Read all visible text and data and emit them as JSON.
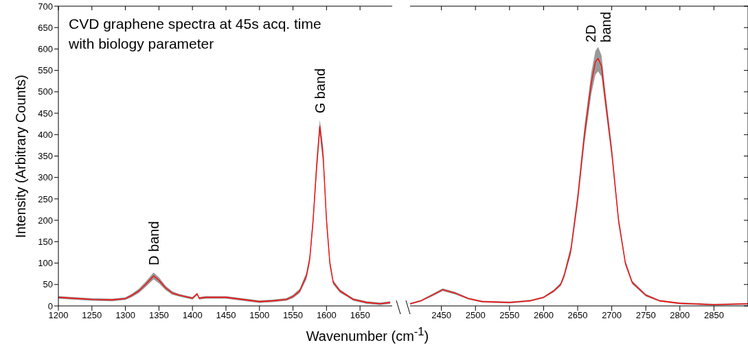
{
  "chart_data": [
    {
      "type": "line",
      "title": "CVD graphene spectra at 45s acq. time\nwith biology parameter",
      "xlabel": "Wavenumber (cm$^{-1}$)",
      "ylabel": "Intensity (Arbitrary Counts)",
      "xlim": [
        1200,
        1698
      ],
      "xticks": [
        1200,
        1250,
        1300,
        1350,
        1400,
        1450,
        1500,
        1550,
        1600,
        1650
      ],
      "ylim": [
        0,
        700
      ],
      "yticks": [
        0,
        50,
        100,
        150,
        200,
        250,
        300,
        350,
        400,
        450,
        500,
        550,
        600,
        650,
        700
      ],
      "grid": false,
      "legend": false,
      "annotations": [
        {
          "text": "D band",
          "x": 1342,
          "y": 85
        },
        {
          "text": "G band",
          "x": 1590,
          "y": 440
        }
      ],
      "series": [
        {
          "color": "#ff0000",
          "x": [
            1200,
            1220,
            1250,
            1280,
            1300,
            1310,
            1320,
            1330,
            1342,
            1350,
            1360,
            1370,
            1380,
            1400,
            1407,
            1410,
            1420,
            1450,
            1480,
            1500,
            1520,
            1540,
            1550,
            1560,
            1570,
            1575,
            1580,
            1585,
            1590,
            1595,
            1600,
            1605,
            1610,
            1620,
            1630,
            1640,
            1660,
            1680,
            1695
          ],
          "values": [
            20,
            18,
            15,
            14,
            17,
            25,
            35,
            50,
            70,
            60,
            42,
            30,
            25,
            18,
            28,
            18,
            20,
            20,
            14,
            10,
            12,
            15,
            22,
            35,
            70,
            110,
            200,
            320,
            420,
            350,
            200,
            100,
            55,
            35,
            25,
            15,
            8,
            5,
            8
          ],
          "lower": [
            17,
            15,
            12,
            11,
            14,
            21,
            30,
            44,
            62,
            53,
            37,
            26,
            22,
            15,
            25,
            15,
            17,
            17,
            11,
            7,
            9,
            12,
            18,
            30,
            62,
            100,
            185,
            300,
            400,
            330,
            185,
            90,
            50,
            31,
            22,
            12,
            5,
            2,
            5
          ],
          "upper": [
            23,
            21,
            18,
            17,
            20,
            29,
            40,
            56,
            78,
            67,
            47,
            34,
            28,
            21,
            31,
            21,
            23,
            23,
            17,
            13,
            15,
            18,
            26,
            40,
            78,
            120,
            215,
            340,
            435,
            370,
            215,
            110,
            60,
            39,
            28,
            18,
            11,
            8,
            11
          ]
        }
      ]
    },
    {
      "type": "line",
      "xlim": [
        2404,
        2900
      ],
      "xticks": [
        2450,
        2500,
        2550,
        2600,
        2650,
        2700,
        2750,
        2800,
        2850
      ],
      "ylim": [
        0,
        700
      ],
      "yticks": [
        0,
        50,
        100,
        150,
        200,
        250,
        300,
        350,
        400,
        450,
        500,
        550,
        600,
        650,
        700
      ],
      "tick_labels": "x",
      "grid": false,
      "legend": false,
      "annotations": [
        {
          "text": "2D band",
          "x": 2680,
          "y": 606
        }
      ],
      "series": [
        {
          "color": "#ff0000",
          "x": [
            2404,
            2420,
            2440,
            2452,
            2470,
            2490,
            2510,
            2550,
            2580,
            2600,
            2615,
            2625,
            2630,
            2640,
            2650,
            2660,
            2670,
            2676,
            2680,
            2685,
            2690,
            2700,
            2710,
            2720,
            2730,
            2750,
            2770,
            2800,
            2850,
            2900
          ],
          "values": [
            5,
            12,
            28,
            38,
            30,
            17,
            10,
            8,
            12,
            20,
            35,
            50,
            70,
            130,
            250,
            400,
            520,
            570,
            578,
            560,
            490,
            360,
            200,
            100,
            55,
            25,
            12,
            6,
            3,
            5
          ],
          "lower": [
            3,
            10,
            25,
            35,
            27,
            15,
            8,
            6,
            10,
            18,
            32,
            46,
            64,
            120,
            235,
            380,
            495,
            540,
            548,
            535,
            470,
            345,
            190,
            94,
            51,
            22,
            10,
            4,
            1,
            3
          ],
          "upper": [
            7,
            14,
            31,
            41,
            33,
            19,
            12,
            10,
            14,
            22,
            38,
            54,
            76,
            140,
            265,
            420,
            545,
            595,
            605,
            585,
            510,
            375,
            210,
            106,
            59,
            28,
            14,
            8,
            5,
            7
          ]
        }
      ]
    }
  ]
}
